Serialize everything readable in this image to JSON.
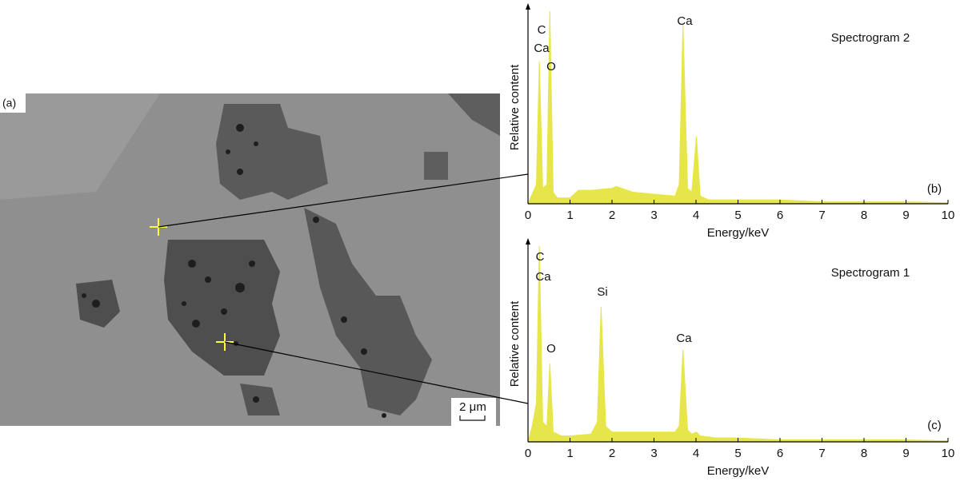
{
  "image": {
    "label": "(a)",
    "scale_bar": "2 μm"
  },
  "chart_data": [
    {
      "type": "area",
      "title": "Spectrogram 2",
      "panel_label": "(b)",
      "color": "#e6e64a",
      "xlabel": "Energy/keV",
      "ylabel": "Relative content",
      "annotations": [
        "C",
        "Ca",
        "O",
        "Ca"
      ],
      "x": [
        0.1,
        0.2,
        0.27,
        0.35,
        0.45,
        0.52,
        0.6,
        0.7,
        1.0,
        1.2,
        1.5,
        2.0,
        2.1,
        2.5,
        3.0,
        3.5,
        3.6,
        3.69,
        3.8,
        3.9,
        4.01,
        4.1,
        4.3,
        5.0,
        6.0,
        7.0,
        8.0,
        9.0,
        10.0
      ],
      "values": [
        5,
        10,
        74,
        8,
        10,
        100,
        6,
        3,
        3,
        7,
        7,
        8,
        9,
        6,
        5,
        4,
        10,
        93,
        8,
        6,
        35,
        4,
        2,
        2,
        2,
        1,
        1,
        1,
        0.5
      ],
      "xlim": [
        0,
        10
      ],
      "xticks": [
        0,
        1,
        2,
        3,
        4,
        5,
        6,
        7,
        8,
        9,
        10
      ],
      "ylim": [
        0,
        100
      ]
    },
    {
      "type": "area",
      "title": "Spectrogram 1",
      "panel_label": "(c)",
      "color": "#e6e64a",
      "xlabel": "Energy/keV",
      "ylabel": "Relative content",
      "annotations": [
        "C",
        "Ca",
        "Si",
        "O",
        "Ca"
      ],
      "x": [
        0.1,
        0.2,
        0.27,
        0.35,
        0.45,
        0.52,
        0.6,
        0.8,
        1.0,
        1.5,
        1.65,
        1.74,
        1.85,
        2.0,
        2.5,
        3.0,
        3.5,
        3.6,
        3.69,
        3.8,
        3.9,
        4.01,
        4.1,
        4.5,
        5.0,
        6.0,
        7.0,
        8.0,
        9.0,
        10.0
      ],
      "values": [
        8,
        20,
        100,
        10,
        8,
        40,
        5,
        3,
        3,
        4,
        10,
        69,
        8,
        5,
        5,
        5,
        5,
        8,
        47,
        6,
        4,
        5,
        3,
        2,
        2,
        1,
        1,
        1,
        1,
        0.5
      ],
      "xlim": [
        0,
        10
      ],
      "xticks": [
        0,
        1,
        2,
        3,
        4,
        5,
        6,
        7,
        8,
        9,
        10
      ],
      "ylim": [
        0,
        100
      ]
    }
  ]
}
